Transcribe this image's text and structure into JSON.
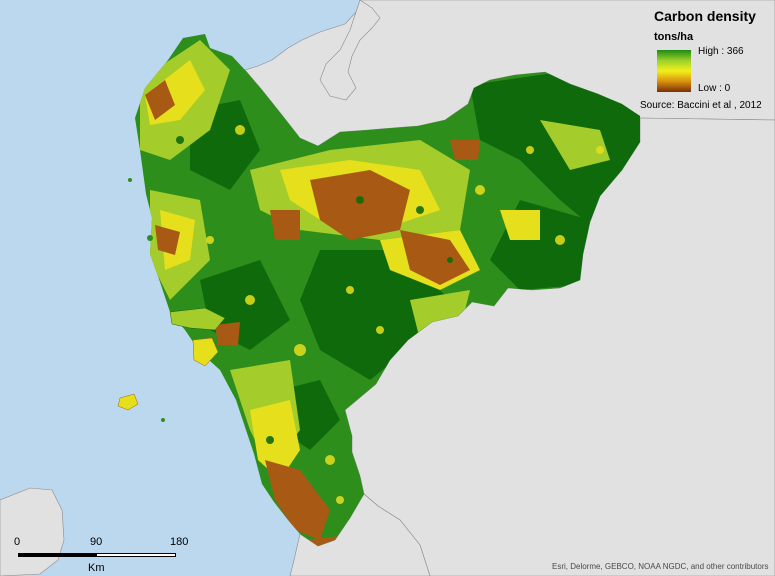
{
  "legend": {
    "title": "Carbon density",
    "units": "tons/ha",
    "high_label": "High : 366",
    "low_label": "Low : 0",
    "high_value": 366,
    "low_value": 0,
    "ramp_colors": [
      "#1e8a12",
      "#9bd12a",
      "#f3f01a",
      "#d8900f",
      "#7a2f08"
    ]
  },
  "source": "Source: Baccini et al , 2012",
  "scale_bar": {
    "ticks": [
      "0",
      "90",
      "180"
    ],
    "unit": "Km"
  },
  "attribution": "Esri, Delorme, GEBCO, NOAA NGDC, and other contributors",
  "colors": {
    "sea": "#bcd8ef",
    "land": "#e1e1e1",
    "forest_dark": "#0f6a0c",
    "forest": "#2e8e1c",
    "medium": "#a4cc2a",
    "low": "#e6df1c",
    "bare": "#a85a14"
  }
}
